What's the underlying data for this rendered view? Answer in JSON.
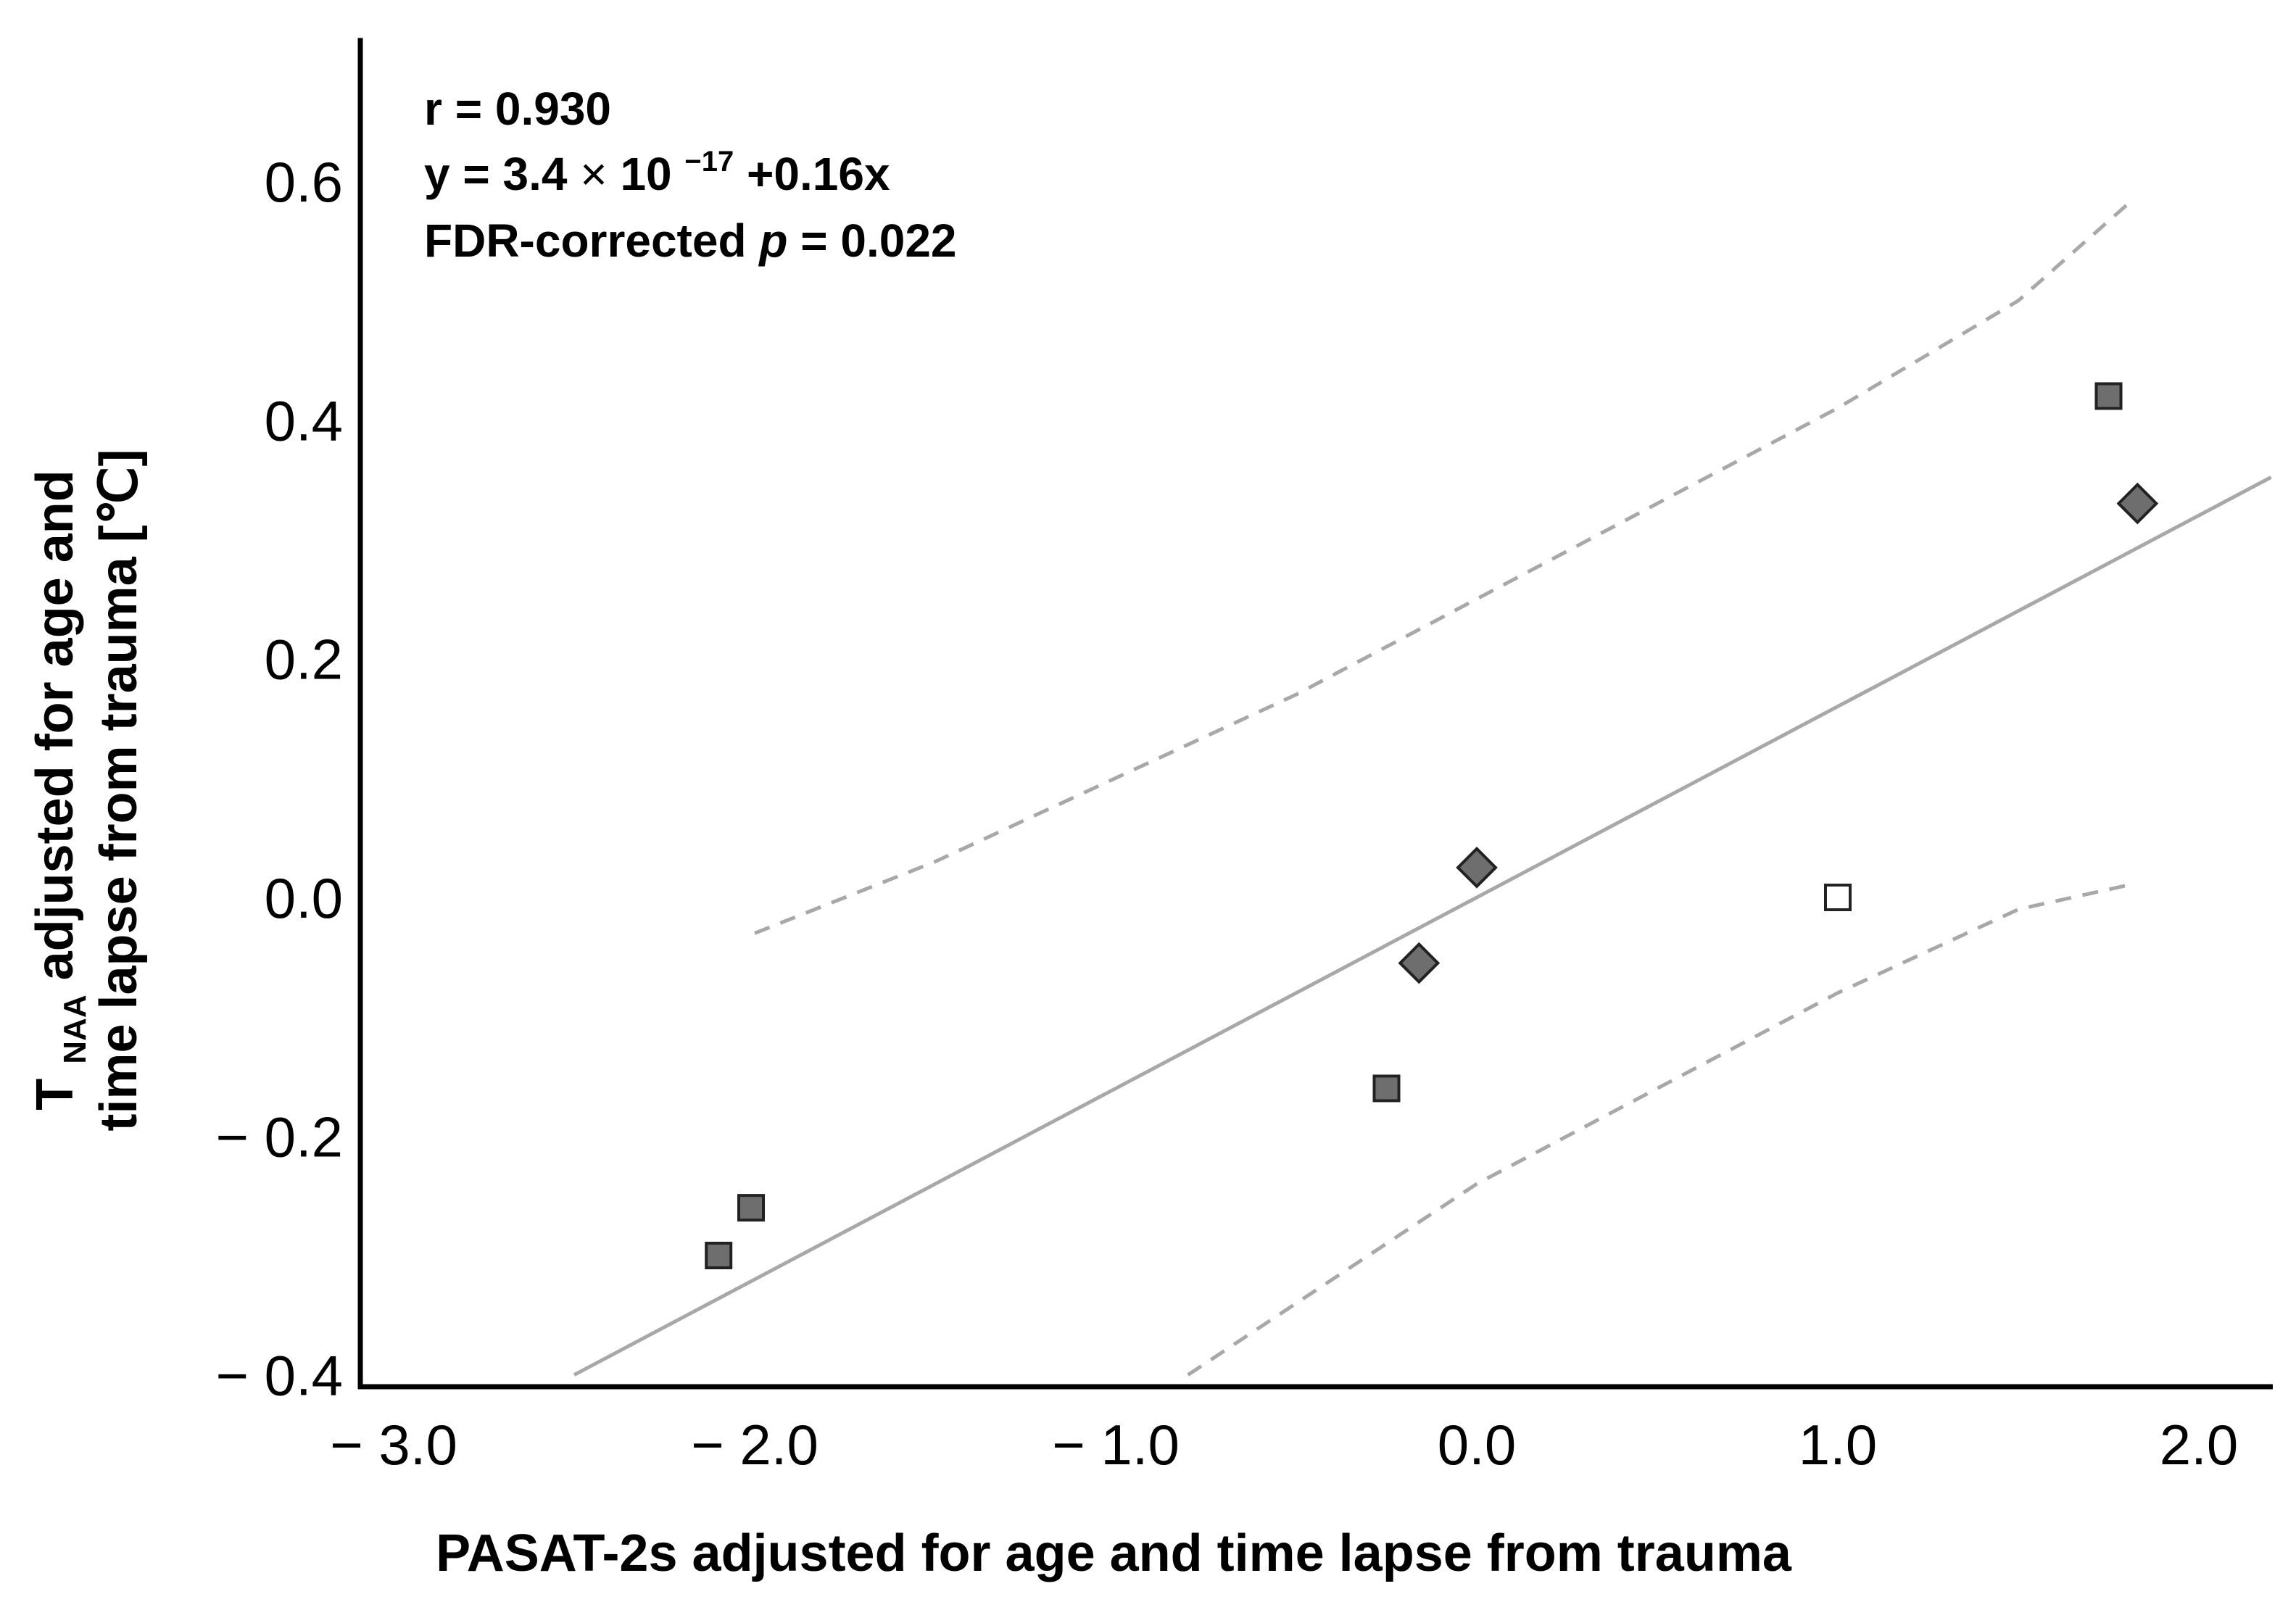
{
  "chart_data": {
    "type": "scatter",
    "title": "",
    "xlabel": "PASAT-2s  adjusted for age and time lapse from trauma",
    "ylabel": {
      "symbol": "T",
      "subscript": "NAA",
      "line1_rest": " adjusted for age and",
      "line2": "time lapse from trauma [℃]"
    },
    "xlim": [
      -3.2,
      2.2
    ],
    "ylim": [
      -0.4,
      0.72
    ],
    "xticks": [
      {
        "value": -3.0,
        "label": "− 3.0"
      },
      {
        "value": -2.0,
        "label": "− 2.0"
      },
      {
        "value": -1.0,
        "label": "− 1.0"
      },
      {
        "value": 0.0,
        "label": "0.0"
      },
      {
        "value": 1.0,
        "label": "1.0"
      },
      {
        "value": 2.0,
        "label": "2.0"
      }
    ],
    "yticks": [
      {
        "value": 0.6,
        "label": "0.6"
      },
      {
        "value": 0.4,
        "label": "0.4"
      },
      {
        "value": 0.2,
        "label": "0.2"
      },
      {
        "value": 0.0,
        "label": "0.0"
      },
      {
        "value": -0.2,
        "label": "− 0.2"
      },
      {
        "value": -0.4,
        "label": "− 0.4"
      }
    ],
    "grid": false,
    "annotation": {
      "r_line": "r = 0.930",
      "eq_prefix": "y = 3.4",
      "eq_times": "×",
      "eq_base": " 10",
      "eq_exp": "−17",
      "eq_suffix": "+0.16x",
      "p_prefix": "FDR-corrected ",
      "p_symbol": "p",
      "p_suffix": " = 0.022"
    },
    "regression": {
      "intercept": 0.0,
      "slope": 0.16,
      "x_range": [
        -2.5,
        2.2
      ]
    },
    "ci_upper": [
      {
        "x": -2.0,
        "y": -0.03
      },
      {
        "x": -1.5,
        "y": 0.03
      },
      {
        "x": -1.0,
        "y": 0.1
      },
      {
        "x": -0.5,
        "y": 0.17
      },
      {
        "x": 0.0,
        "y": 0.25
      },
      {
        "x": 0.5,
        "y": 0.33
      },
      {
        "x": 1.0,
        "y": 0.41
      },
      {
        "x": 1.5,
        "y": 0.5
      },
      {
        "x": 1.8,
        "y": 0.58
      }
    ],
    "ci_lower": [
      {
        "x": -0.8,
        "y": -0.4
      },
      {
        "x": -0.5,
        "y": -0.34
      },
      {
        "x": 0.0,
        "y": -0.24
      },
      {
        "x": 0.5,
        "y": -0.16
      },
      {
        "x": 1.0,
        "y": -0.08
      },
      {
        "x": 1.5,
        "y": -0.01
      },
      {
        "x": 1.8,
        "y": 0.01
      }
    ],
    "points": [
      {
        "x": -2.1,
        "y": -0.3,
        "marker": "square",
        "fill": "#6e6e6e"
      },
      {
        "x": -2.01,
        "y": -0.26,
        "marker": "square",
        "fill": "#6e6e6e"
      },
      {
        "x": -0.25,
        "y": -0.16,
        "marker": "square",
        "fill": "#6e6e6e"
      },
      {
        "x": -0.16,
        "y": -0.055,
        "marker": "diamond",
        "fill": "#6e6e6e"
      },
      {
        "x": 0.0,
        "y": 0.025,
        "marker": "diamond",
        "fill": "#6e6e6e"
      },
      {
        "x": 1.0,
        "y": 0.0,
        "marker": "square",
        "fill": "#ffffff"
      },
      {
        "x": 1.75,
        "y": 0.42,
        "marker": "square",
        "fill": "#6e6e6e"
      },
      {
        "x": 1.83,
        "y": 0.33,
        "marker": "diamond",
        "fill": "#6e6e6e"
      }
    ],
    "colors": {
      "axis": "#000000",
      "fit_line": "#a8a8a8",
      "ci_line": "#a8a8a8",
      "marker_edge": "#222222"
    }
  }
}
